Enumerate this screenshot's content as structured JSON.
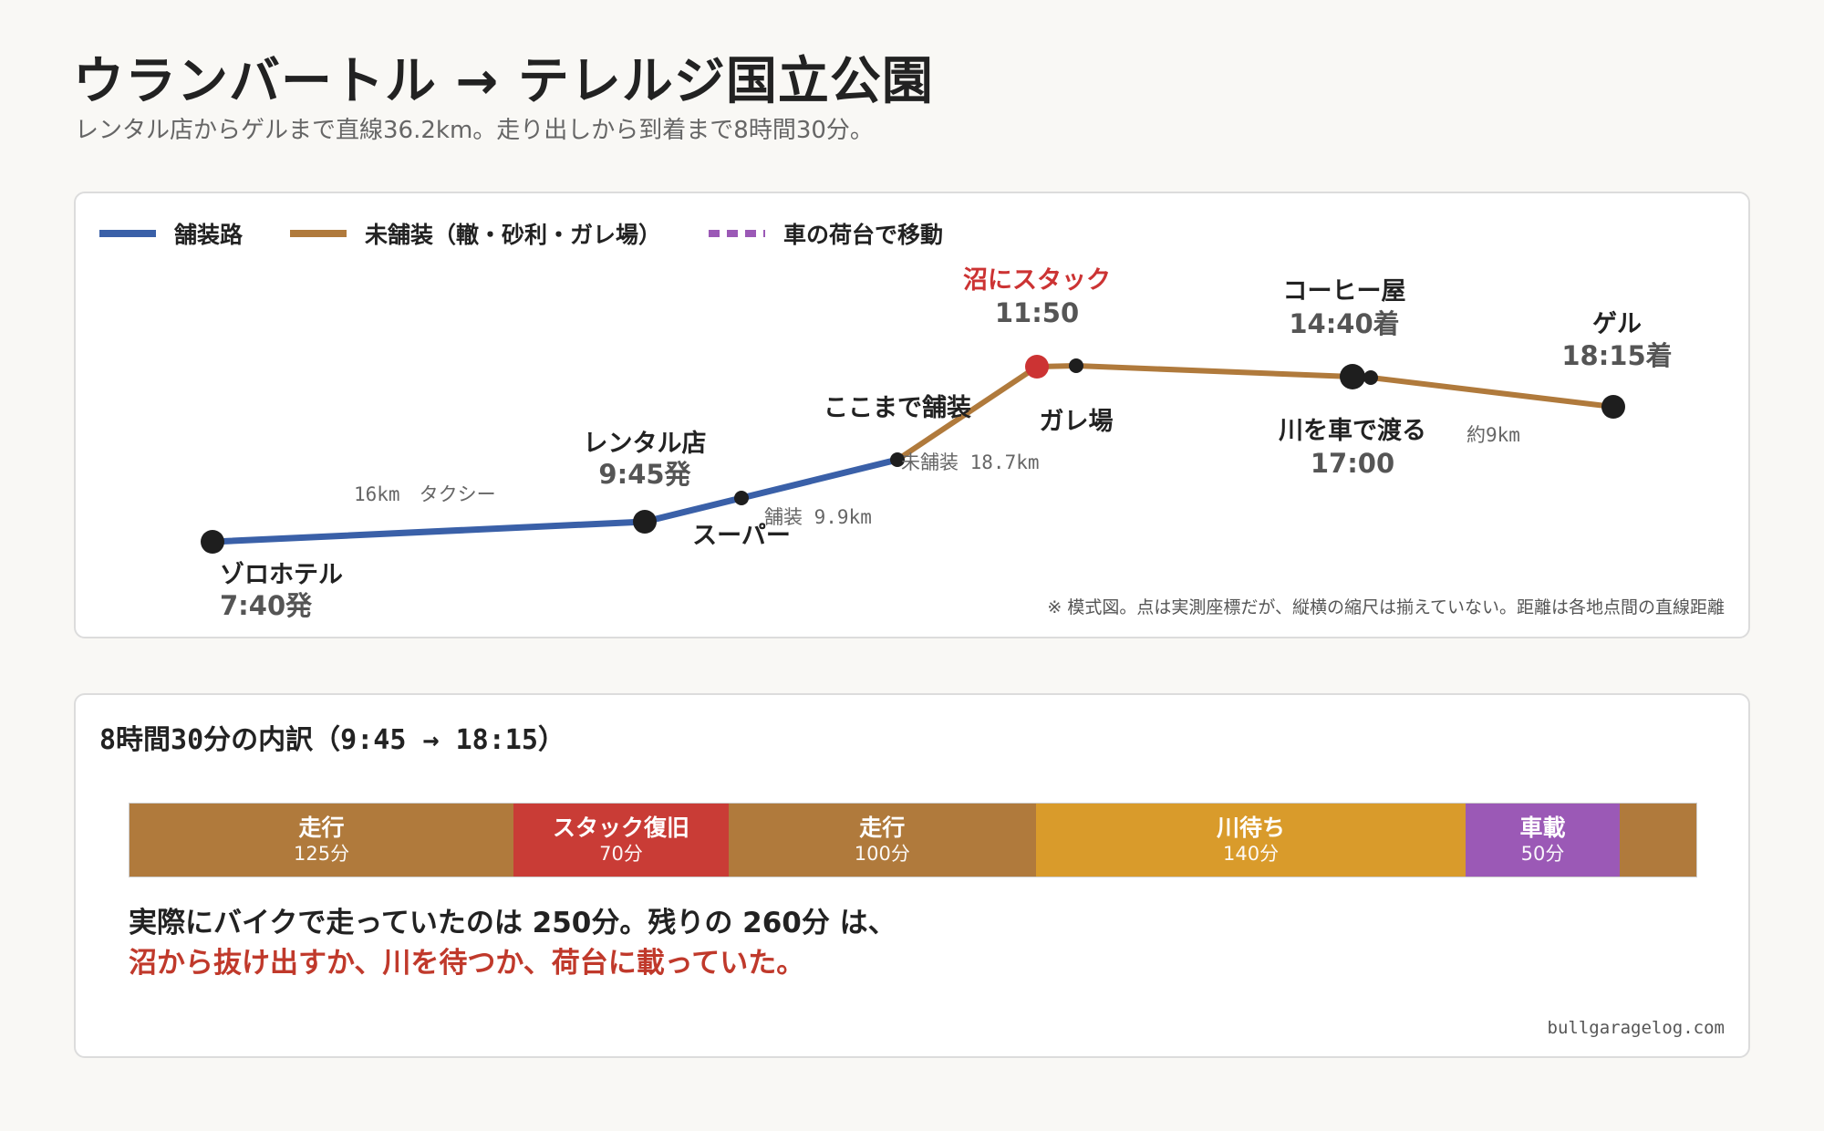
{
  "title": "ウランバートル → テレルジ国立公園",
  "subtitle": "レンタル店からゲルまで直線36.2km。走り出しから到着まで8時間30分。",
  "legend": [
    {
      "key": "paved",
      "label": "舗装路",
      "color": "#3a60a8"
    },
    {
      "key": "unpaved",
      "label": "未舗装（轍・砂利・ガレ場）",
      "color": "#b07a3c"
    },
    {
      "key": "truck",
      "label": "車の荷台で移動",
      "color": "#9b59b6"
    }
  ],
  "route": {
    "points": [
      {
        "name": "ゾロホテル",
        "time": "7:40発"
      },
      {
        "name": "レンタル店",
        "time": "9:45発"
      },
      {
        "name": "スーパー",
        "time": ""
      },
      {
        "name": "ここまで舗装",
        "time": ""
      },
      {
        "name": "沼にスタック",
        "time": "11:50"
      },
      {
        "name": "ガレ場",
        "time": ""
      },
      {
        "name": "コーヒー屋",
        "time": "14:40着"
      },
      {
        "name": "川を車で渡る",
        "time": "17:00"
      },
      {
        "name": "ゲル",
        "time": "18:15着"
      }
    ],
    "segment_labels": {
      "taxi": "16km　タクシー",
      "paved": "舗装 9.9km",
      "unpaved": "未舗装 18.7km",
      "last": "約9km"
    },
    "note": "※ 模式図。点は実測座標だが、縦横の縮尺は揃えていない。距離は各地点間の直線距離"
  },
  "breakdown": {
    "title": "8時間30分の内訳（9:45 → 18:15）",
    "segments": [
      {
        "label": "走行",
        "minutes": 125,
        "minutes_text": "125分",
        "color": "#b07a3c"
      },
      {
        "label": "スタック復旧",
        "minutes": 70,
        "minutes_text": "70分",
        "color": "#c93c36"
      },
      {
        "label": "走行",
        "minutes": 100,
        "minutes_text": "100分",
        "color": "#b07a3c"
      },
      {
        "label": "川待ち",
        "minutes": 140,
        "minutes_text": "140分",
        "color": "#d99b2b"
      },
      {
        "label": "車載",
        "minutes": 50,
        "minutes_text": "50分",
        "color": "#9b59b6"
      },
      {
        "label": "",
        "minutes": 25,
        "minutes_text": "",
        "color": "#b07a3c"
      }
    ],
    "summary_line1": "実際にバイクで走っていたのは 250分。残りの 260分 は、",
    "summary_line2": "沼から抜け出すか、川を待つか、荷台に載っていた。"
  },
  "credit": "bullgaragelog.com"
}
